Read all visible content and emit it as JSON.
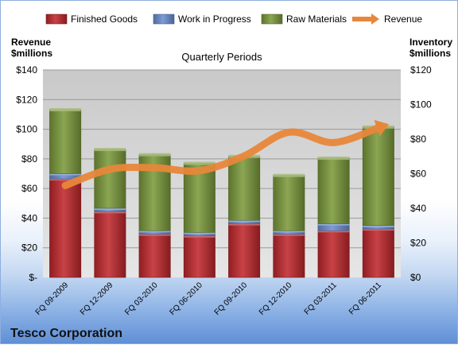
{
  "company": "Tesco Corporation",
  "chart_data": {
    "type": "bar",
    "stacked": true,
    "title": "Quarterly Periods",
    "categories": [
      "FQ 09-2009",
      "FQ 12-2009",
      "FQ 03-2010",
      "FQ 06-2010",
      "FQ 09-2010",
      "FQ 12-2010",
      "FQ 03-2011",
      "FQ 06-2011"
    ],
    "series": [
      {
        "name": "Finished Goods",
        "color": "#c0282d",
        "values": [
          57,
          38,
          25,
          24,
          31,
          25,
          27,
          28
        ]
      },
      {
        "name": "Work in Progress",
        "color": "#6b8fd0",
        "values": [
          3,
          2,
          2,
          2,
          2,
          2,
          4,
          2
        ]
      },
      {
        "name": "Raw Materials",
        "color": "#7b9a3c",
        "values": [
          37,
          34,
          44,
          40,
          37,
          32,
          38,
          57
        ]
      }
    ],
    "line_series": {
      "name": "Revenue",
      "color": "#e8873a",
      "values": [
        62,
        73,
        74,
        72,
        82,
        98,
        91,
        101
      ]
    },
    "left_axis": {
      "label_line1": "Revenue",
      "label_line2": "$millions",
      "ylim": [
        0,
        140
      ],
      "tick_labels": [
        "$-",
        "$20",
        "$40",
        "$60",
        "$80",
        "$100",
        "$120",
        "$140"
      ]
    },
    "right_axis": {
      "label_line1": "Inventory",
      "label_line2": "$millions",
      "ylim": [
        0,
        120
      ],
      "tick_labels": [
        "$0",
        "$20",
        "$40",
        "$60",
        "$80",
        "$100",
        "$120"
      ]
    },
    "grid": true,
    "legend_position": "top"
  }
}
